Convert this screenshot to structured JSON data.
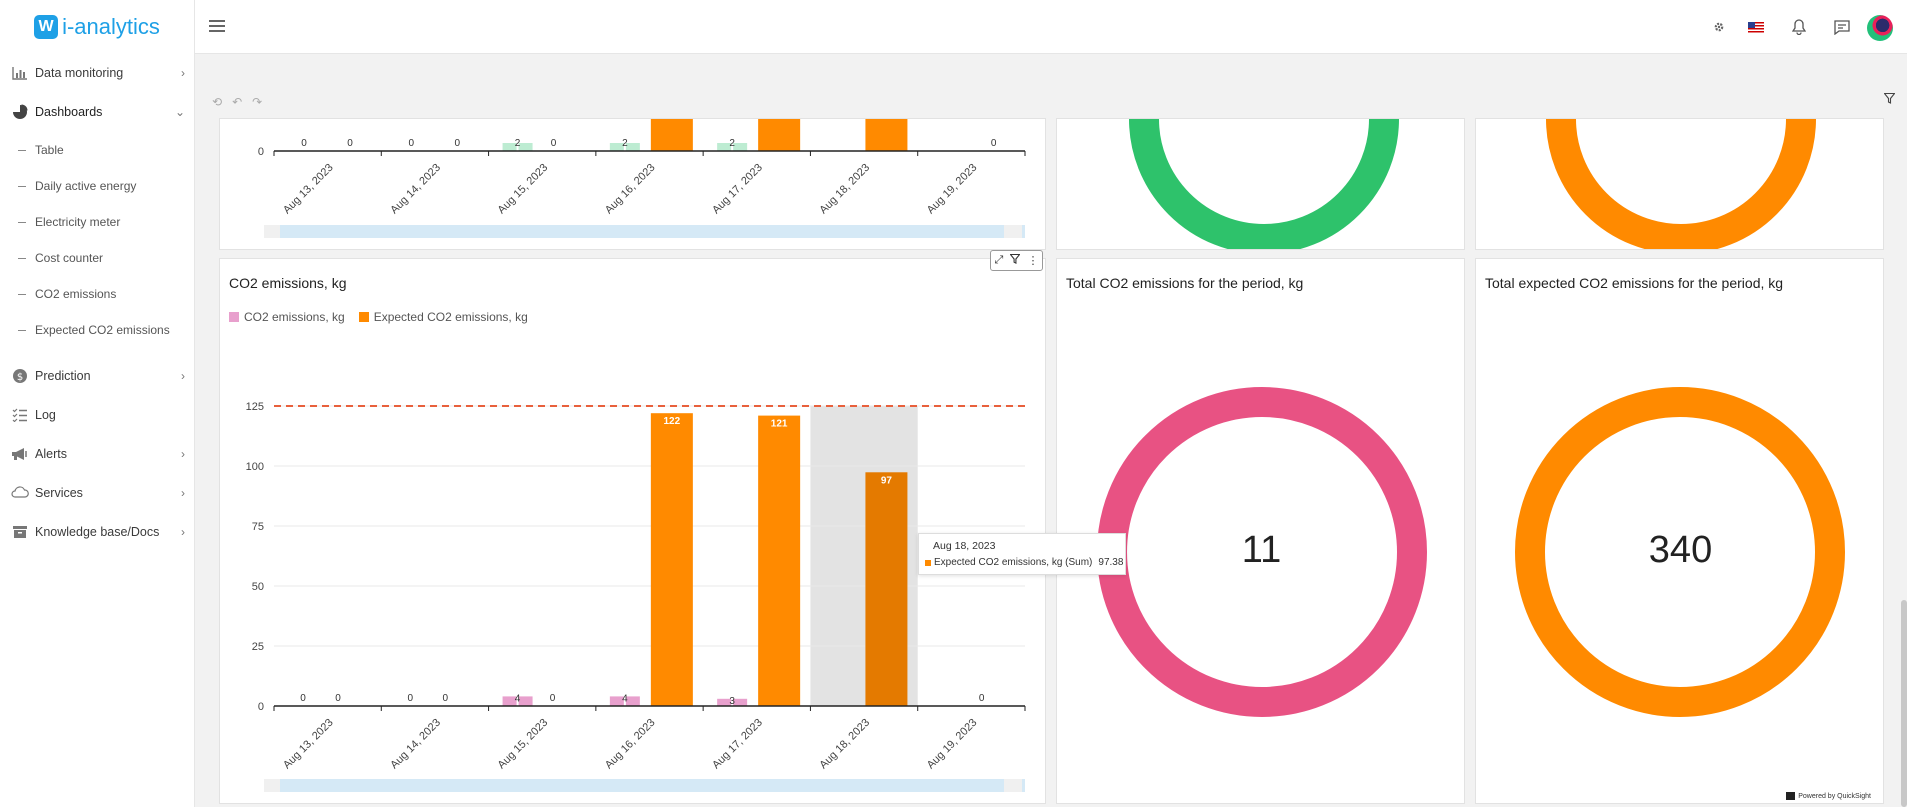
{
  "app": {
    "logo_text": "i-analytics"
  },
  "sidebar": {
    "items": [
      {
        "label": "Data monitoring",
        "icon": "bar-chart-icon"
      },
      {
        "label": "Dashboards",
        "icon": "pie-chart-icon"
      },
      {
        "label": "Prediction",
        "icon": "dollar-icon"
      },
      {
        "label": "Log",
        "icon": "checklist-icon"
      },
      {
        "label": "Alerts",
        "icon": "megaphone-icon"
      },
      {
        "label": "Services",
        "icon": "cloud-icon"
      },
      {
        "label": "Knowledge base/Docs",
        "icon": "archive-icon"
      }
    ],
    "subitems": [
      "Table",
      "Daily active energy",
      "Electricity meter",
      "Cost counter",
      "CO2 emissions",
      "Expected CO2 emissions"
    ]
  },
  "toolbar": {
    "undo": "⟲",
    "back": "↶",
    "forward": "↷"
  },
  "panels": {
    "co2_chart_title": "CO2 emissions, kg",
    "total_title": "Total CO2 emissions for the period, kg",
    "total_value": "11",
    "expected_title": "Total expected CO2 emissions for the period, kg",
    "expected_value": "340"
  },
  "tooltip": {
    "date": "Aug 18, 2023",
    "series": "Expected CO2 emissions, kg (Sum)",
    "value": "97.38"
  },
  "footer": {
    "powered": "Powered by QuickSight"
  },
  "colors": {
    "actual": "#e8a0cd",
    "expected": "#ff8a00",
    "green": "#2ec26b",
    "light_green": "#bdecd2",
    "pink_ring": "#e85283",
    "threshold": "#e8603c"
  },
  "chart_data": [
    {
      "type": "bar",
      "categories": [
        "Aug 13, 2023",
        "Aug 14, 2023",
        "Aug 15, 2023",
        "Aug 16, 2023",
        "Aug 17, 2023",
        "Aug 18, 2023",
        "Aug 19, 2023"
      ],
      "series": [
        {
          "name": "CO2 emissions, kg",
          "values": [
            0,
            0,
            4,
            4,
            3,
            null,
            null
          ]
        },
        {
          "name": "Expected CO2 emissions, kg",
          "values": [
            0,
            0,
            0,
            122,
            121,
            97.38,
            0
          ]
        }
      ],
      "data_labels": [
        "0",
        "0",
        "0",
        "0",
        "4",
        "0",
        "4",
        "122",
        "3",
        "121",
        "97",
        "0"
      ],
      "yticks": [
        "0",
        "25",
        "50",
        "75",
        "100",
        "125"
      ],
      "ylim": [
        0,
        125
      ],
      "reference_line": 125
    },
    {
      "type": "bar",
      "categories": [
        "Aug 13, 2023",
        "Aug 14, 2023",
        "Aug 15, 2023",
        "Aug 16, 2023",
        "Aug 17, 2023",
        "Aug 18, 2023",
        "Aug 19, 2023"
      ],
      "data_labels": [
        "0",
        "0",
        "0",
        "0",
        "2",
        "0",
        "2",
        "2",
        "0"
      ],
      "yticks": [
        "0"
      ]
    }
  ]
}
